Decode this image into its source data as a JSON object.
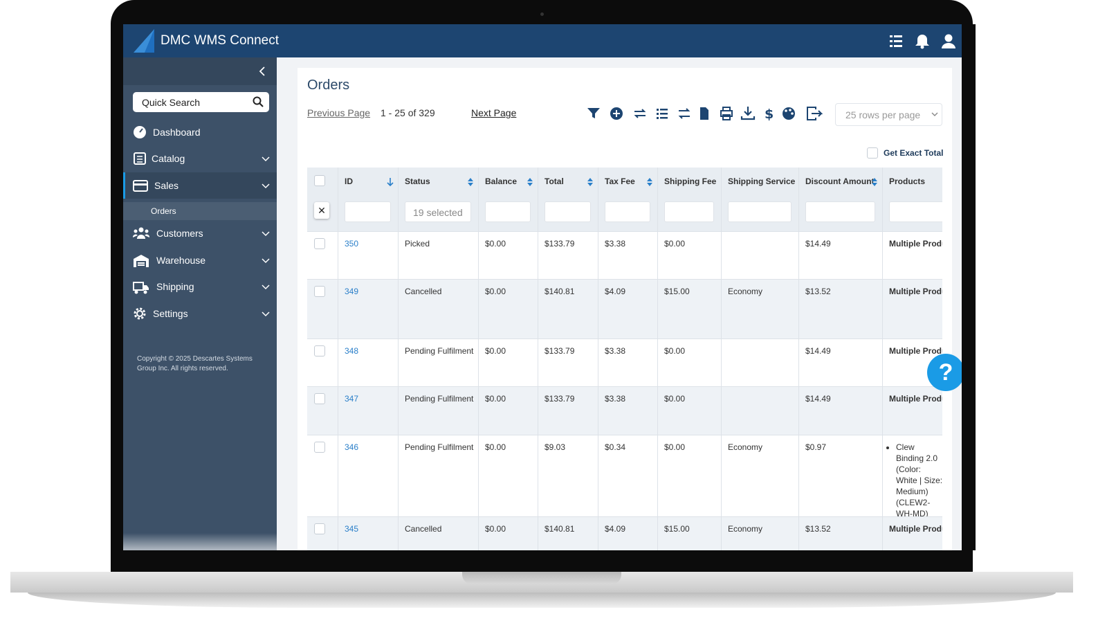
{
  "header": {
    "brand": "DMC WMS Connect"
  },
  "sidebar": {
    "search": "Quick Search",
    "menu": [
      "Dashboard",
      "Catalog",
      "Sales",
      "Customers",
      "Warehouse",
      "Shipping",
      "Settings"
    ],
    "submenu": [
      "Orders"
    ],
    "copyright": "Copyright © 2025 Descartes Systems Group Inc. All rights reserved."
  },
  "page": {
    "title": "Orders",
    "previous": "Previous Page",
    "range": "1 - 25 of 329",
    "next": "Next Page",
    "rows_per_page": "25 rows per page",
    "exact_total": "Get Exact Total",
    "help": "?"
  },
  "table": {
    "columns": [
      "ID",
      "Status",
      "Balance",
      "Total",
      "Tax Fee",
      "Shipping Fee",
      "Shipping Service",
      "Discount Amount",
      "Products"
    ],
    "status_filter": "19 selected",
    "rows": [
      [
        "350",
        "Picked",
        "$0.00",
        "$133.79",
        "$3.38",
        "$0.00",
        null,
        "$14.49",
        "Multiple Products"
      ],
      [
        "349",
        "Cancelled",
        "$0.00",
        "$140.81",
        "$4.09",
        "$15.00",
        "Economy",
        "$13.52",
        "Multiple Products"
      ],
      [
        "348",
        "Pending Fulfilment",
        "$0.00",
        "$133.79",
        "$3.38",
        "$0.00",
        null,
        "$14.49",
        "Multiple Products"
      ],
      [
        "347",
        "Pending Fulfilment",
        "$0.00",
        "$133.79",
        "$3.38",
        "$0.00",
        null,
        "$14.49",
        "Multiple Products"
      ],
      [
        "346",
        "Pending Fulfilment",
        "$0.00",
        "$9.03",
        "$0.34",
        "$0.00",
        "Economy",
        "$0.97",
        "Clew Binding 2.0 (Color: White | Size: Medium) (CLEW2-WH-MD)"
      ],
      [
        "345",
        "Cancelled",
        "$0.00",
        "$140.81",
        "$4.09",
        "$15.00",
        "Economy",
        "$13.52",
        "Multiple Products"
      ]
    ]
  }
}
